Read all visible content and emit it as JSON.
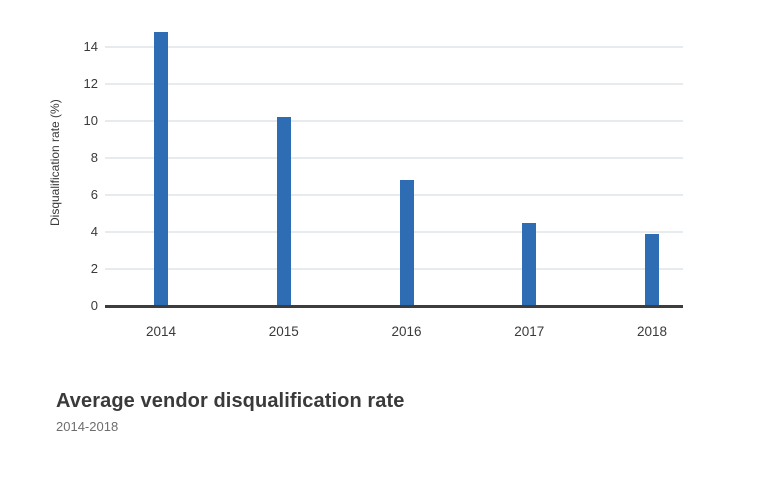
{
  "chart_data": {
    "type": "bar",
    "title": "Average vendor disqualification rate",
    "subtitle": "2014-2018",
    "xlabel": "",
    "ylabel": "Disqualification rate (%)",
    "categories": [
      "2014",
      "2015",
      "2016",
      "2017",
      "2018"
    ],
    "values": [
      14.8,
      10.2,
      6.8,
      4.5,
      3.9
    ],
    "yticks": [
      0,
      2,
      4,
      6,
      8,
      10,
      12,
      14
    ],
    "ylim": [
      0,
      15.5
    ],
    "grid": true,
    "legend": "none",
    "colors": {
      "bar": "#2e6db4",
      "gridline": "#e8ebee",
      "axis_line": "#3d3d3d",
      "tick_text": "#3a3a3a",
      "title_text": "#3a3a3a",
      "subtitle_text": "#6e6e6e",
      "background": "#ffffff"
    }
  }
}
